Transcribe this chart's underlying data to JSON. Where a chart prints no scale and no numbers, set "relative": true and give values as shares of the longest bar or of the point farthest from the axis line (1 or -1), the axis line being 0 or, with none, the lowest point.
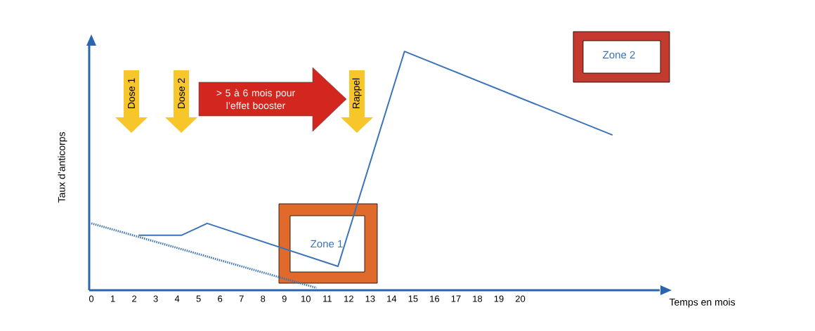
{
  "chart_data": {
    "type": "line",
    "xlabel": "Temps en mois",
    "ylabel": "Taux d’anticorps",
    "relative": true,
    "tick_labels": "x",
    "xlim": [
      -0.1,
      26.5
    ],
    "xticks": [
      0,
      1,
      2,
      3,
      4,
      5,
      6,
      7,
      8,
      9,
      10,
      11,
      12,
      13,
      14,
      15,
      16,
      17,
      18,
      19,
      20
    ],
    "series": [
      {
        "color": "#3b73b9",
        "line_style": "solid",
        "x": [
          2.2,
          4.2,
          5.4,
          11.5,
          14.6,
          24.3
        ],
        "values": [
          0.23,
          0.23,
          0.28,
          0.1,
          1,
          0.65
        ]
      },
      {
        "color": "#3b73b9",
        "line_style": "dotted",
        "x": [
          0,
          10.5
        ],
        "values": [
          0.28,
          0.01
        ]
      }
    ],
    "annotations": [
      "Dose 1",
      "Dose 2",
      "> 5 à 6 mois pour l’effet booster",
      "Rappel",
      "Zone 1",
      "Zone 2"
    ]
  }
}
